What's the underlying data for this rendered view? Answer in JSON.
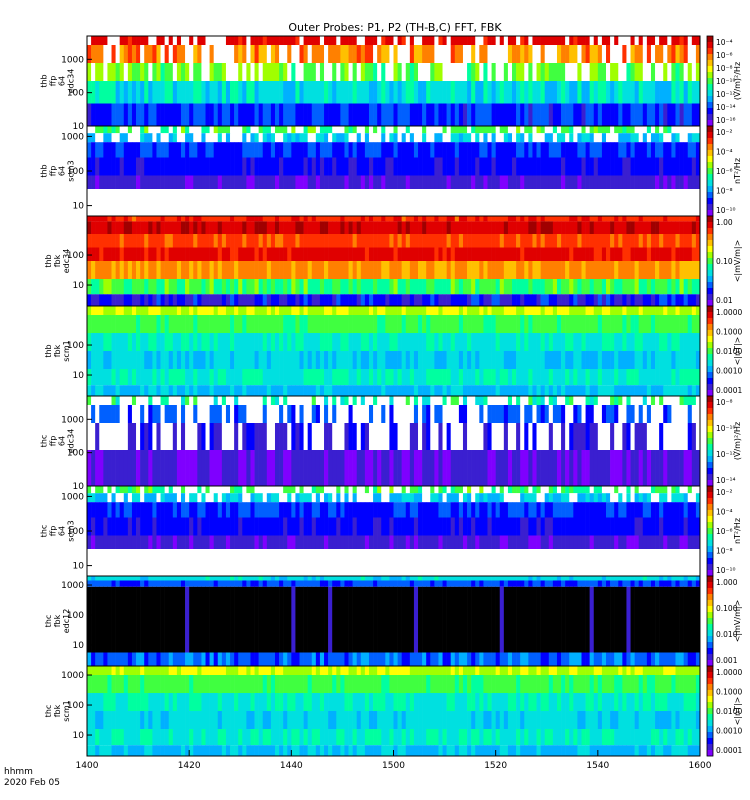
{
  "title": "Outer Probes: P1, P2 (TH-B,C) FFT, FBK",
  "footer": {
    "line1": "hhmm",
    "line2": "2020 Feb 05"
  },
  "colormap": [
    "#7f00ff",
    "#3a1fd0",
    "#0000ff",
    "#0060ff",
    "#00b0ff",
    "#00e0e0",
    "#00ffa0",
    "#40ff40",
    "#a0ff00",
    "#ffff00",
    "#ffc000",
    "#ff8000",
    "#ff3000",
    "#e00000",
    "#a00000"
  ],
  "chart_data": {
    "type": "heatmap",
    "x_ticks": [
      "1400",
      "1420",
      "1440",
      "1500",
      "1520",
      "1540",
      "1600"
    ],
    "x_range": [
      "1400",
      "1600"
    ],
    "panels": [
      {
        "ylabel": [
          "thb",
          "ffp",
          "64",
          "edc34"
        ],
        "yticks": [
          "1000",
          "100",
          "10"
        ],
        "y_range": [
          10,
          5000
        ],
        "y_log": true,
        "zlabel": "(V/m)²/Hz",
        "zticks": [
          "10⁻⁴",
          "10⁻⁶",
          "10⁻⁸",
          "10⁻¹⁰",
          "10⁻¹²",
          "10⁻¹⁴",
          "10⁻¹⁶"
        ],
        "z_log": true,
        "bands": [
          {
            "lo": 0.0,
            "hi": 0.1,
            "v": [
              0.88,
              0.96
            ]
          },
          {
            "lo": 0.1,
            "hi": 0.3,
            "v": [
              0.7,
              0.85
            ]
          },
          {
            "lo": 0.3,
            "hi": 0.5,
            "v": [
              0.45,
              0.6
            ]
          },
          {
            "lo": 0.5,
            "hi": 0.75,
            "v": [
              0.25,
              0.45
            ]
          },
          {
            "lo": 0.75,
            "hi": 1.0,
            "v": [
              0.1,
              0.25
            ]
          }
        ],
        "pattern": "spiky",
        "white_frac": 0.35
      },
      {
        "ylabel": [
          "thb",
          "ffp",
          "64",
          "scm3"
        ],
        "yticks": [
          "1000",
          "100",
          "10"
        ],
        "y_range": [
          5,
          2000
        ],
        "y_log": true,
        "zlabel": "nT²/Hz",
        "zticks": [
          "10⁻²",
          "10⁻⁴",
          "10⁻⁶",
          "10⁻⁸",
          "10⁻¹⁰"
        ],
        "z_log": true,
        "bands": [
          {
            "lo": 0.0,
            "hi": 0.08,
            "v": [
              0.42,
              0.55
            ]
          },
          {
            "lo": 0.08,
            "hi": 0.18,
            "v": [
              0.28,
              0.36
            ]
          },
          {
            "lo": 0.18,
            "hi": 0.35,
            "v": [
              0.15,
              0.2
            ]
          },
          {
            "lo": 0.35,
            "hi": 0.55,
            "v": [
              0.1,
              0.14
            ]
          },
          {
            "lo": 0.55,
            "hi": 0.7,
            "v": [
              0.03,
              0.06
            ]
          }
        ],
        "pattern": "noisy-top",
        "white_frac": 0.3
      },
      {
        "ylabel": [
          "thb",
          "fbk",
          "edc34"
        ],
        "yticks": [
          "100",
          "10"
        ],
        "y_range": [
          2,
          2000
        ],
        "y_log": true,
        "zlabel": "<|mV/m|>",
        "zticks": [
          "1.00",
          "0.10",
          "0.01"
        ],
        "z_log": true,
        "bands": [
          {
            "lo": 0.0,
            "hi": 0.06,
            "v": [
              0.82,
              0.92
            ]
          },
          {
            "lo": 0.06,
            "hi": 0.2,
            "v": [
              0.9,
              0.98
            ]
          },
          {
            "lo": 0.2,
            "hi": 0.35,
            "v": [
              0.8,
              0.88
            ]
          },
          {
            "lo": 0.35,
            "hi": 0.5,
            "v": [
              0.88,
              0.95
            ]
          },
          {
            "lo": 0.5,
            "hi": 0.7,
            "v": [
              0.72,
              0.8
            ]
          },
          {
            "lo": 0.7,
            "hi": 0.87,
            "v": [
              0.4,
              0.55
            ]
          },
          {
            "lo": 0.87,
            "hi": 1.0,
            "v": [
              0.05,
              0.2
            ]
          }
        ],
        "pattern": "striped",
        "white_frac": 0.0
      },
      {
        "ylabel": [
          "thb",
          "fbk",
          "scm1"
        ],
        "yticks": [
          "100",
          "10"
        ],
        "y_range": [
          2,
          2000
        ],
        "y_log": true,
        "zlabel": "<|nT|>",
        "zticks": [
          "1.0000",
          "0.1000",
          "0.0100",
          "0.0010",
          "0.0001"
        ],
        "z_log": true,
        "bands": [
          {
            "lo": 0.0,
            "hi": 0.1,
            "v": [
              0.55,
              0.65
            ]
          },
          {
            "lo": 0.1,
            "hi": 0.3,
            "v": [
              0.45,
              0.52
            ]
          },
          {
            "lo": 0.3,
            "hi": 0.5,
            "v": [
              0.35,
              0.42
            ]
          },
          {
            "lo": 0.5,
            "hi": 0.7,
            "v": [
              0.3,
              0.36
            ]
          },
          {
            "lo": 0.7,
            "hi": 0.88,
            "v": [
              0.35,
              0.42
            ]
          },
          {
            "lo": 0.88,
            "hi": 1.0,
            "v": [
              0.25,
              0.35
            ]
          }
        ],
        "pattern": "smooth",
        "white_frac": 0.0
      },
      {
        "ylabel": [
          "thc",
          "ffp",
          "64",
          "edc34"
        ],
        "yticks": [
          "1000",
          "100",
          "10"
        ],
        "y_range": [
          10,
          5000
        ],
        "y_log": true,
        "zlabel": "(V/m)²/Hz",
        "zticks": [
          "10⁻⁸",
          "10⁻¹⁰",
          "10⁻¹²",
          "10⁻¹⁴"
        ],
        "z_log": true,
        "bands": [
          {
            "lo": 0.0,
            "hi": 0.1,
            "v": [
              0.35,
              0.5
            ]
          },
          {
            "lo": 0.1,
            "hi": 0.3,
            "v": [
              0.15,
              0.25
            ]
          },
          {
            "lo": 0.3,
            "hi": 0.6,
            "v": [
              0.05,
              0.15
            ]
          },
          {
            "lo": 0.6,
            "hi": 1.0,
            "v": [
              0.0,
              0.1
            ]
          }
        ],
        "pattern": "spiky-sparse",
        "white_frac": 0.55
      },
      {
        "ylabel": [
          "thc",
          "ffp",
          "64",
          "scm3"
        ],
        "yticks": [
          "1000",
          "100",
          "10"
        ],
        "y_range": [
          5,
          2000
        ],
        "y_log": true,
        "zlabel": "nT²/Hz",
        "zticks": [
          "10⁻²",
          "10⁻⁴",
          "10⁻⁶",
          "10⁻⁸",
          "10⁻¹⁰"
        ],
        "z_log": true,
        "bands": [
          {
            "lo": 0.0,
            "hi": 0.08,
            "v": [
              0.42,
              0.55
            ]
          },
          {
            "lo": 0.08,
            "hi": 0.18,
            "v": [
              0.28,
              0.36
            ]
          },
          {
            "lo": 0.18,
            "hi": 0.35,
            "v": [
              0.15,
              0.2
            ]
          },
          {
            "lo": 0.35,
            "hi": 0.55,
            "v": [
              0.1,
              0.14
            ]
          },
          {
            "lo": 0.55,
            "hi": 0.7,
            "v": [
              0.03,
              0.06
            ]
          }
        ],
        "pattern": "noisy-top",
        "white_frac": 0.3
      },
      {
        "ylabel": [
          "thc",
          "fbk",
          "edc12"
        ],
        "yticks": [
          "1000",
          "100",
          "10"
        ],
        "y_range": [
          2,
          2000
        ],
        "y_log": true,
        "zlabel": "<|mV/m|>",
        "zticks": [
          "1.000",
          "0.100",
          "0.010",
          "0.001"
        ],
        "z_log": true,
        "bands": [
          {
            "lo": 0.0,
            "hi": 0.05,
            "v": [
              0.3,
              0.4
            ]
          },
          {
            "lo": 0.05,
            "hi": 0.12,
            "v": [
              0.15,
              0.25
            ]
          },
          {
            "lo": 0.12,
            "hi": 0.85,
            "v": [
              -1,
              -1
            ]
          },
          {
            "lo": 0.85,
            "hi": 1.0,
            "v": [
              0.15,
              0.3
            ]
          }
        ],
        "pattern": "dark",
        "white_frac": 0.0
      },
      {
        "ylabel": [
          "thc",
          "fbk",
          "scm1"
        ],
        "yticks": [
          "1000",
          "100",
          "10"
        ],
        "y_range": [
          2,
          2000
        ],
        "y_log": true,
        "zlabel": "<|nT|>",
        "zticks": [
          "1.0000",
          "0.1000",
          "0.0100",
          "0.0010",
          "0.0001"
        ],
        "z_log": true,
        "bands": [
          {
            "lo": 0.0,
            "hi": 0.1,
            "v": [
              0.55,
              0.65
            ]
          },
          {
            "lo": 0.1,
            "hi": 0.3,
            "v": [
              0.45,
              0.52
            ]
          },
          {
            "lo": 0.3,
            "hi": 0.5,
            "v": [
              0.35,
              0.42
            ]
          },
          {
            "lo": 0.5,
            "hi": 0.7,
            "v": [
              0.3,
              0.36
            ]
          },
          {
            "lo": 0.7,
            "hi": 0.88,
            "v": [
              0.35,
              0.42
            ]
          },
          {
            "lo": 0.88,
            "hi": 1.0,
            "v": [
              0.25,
              0.35
            ]
          }
        ],
        "pattern": "smooth",
        "white_frac": 0.0
      }
    ]
  }
}
